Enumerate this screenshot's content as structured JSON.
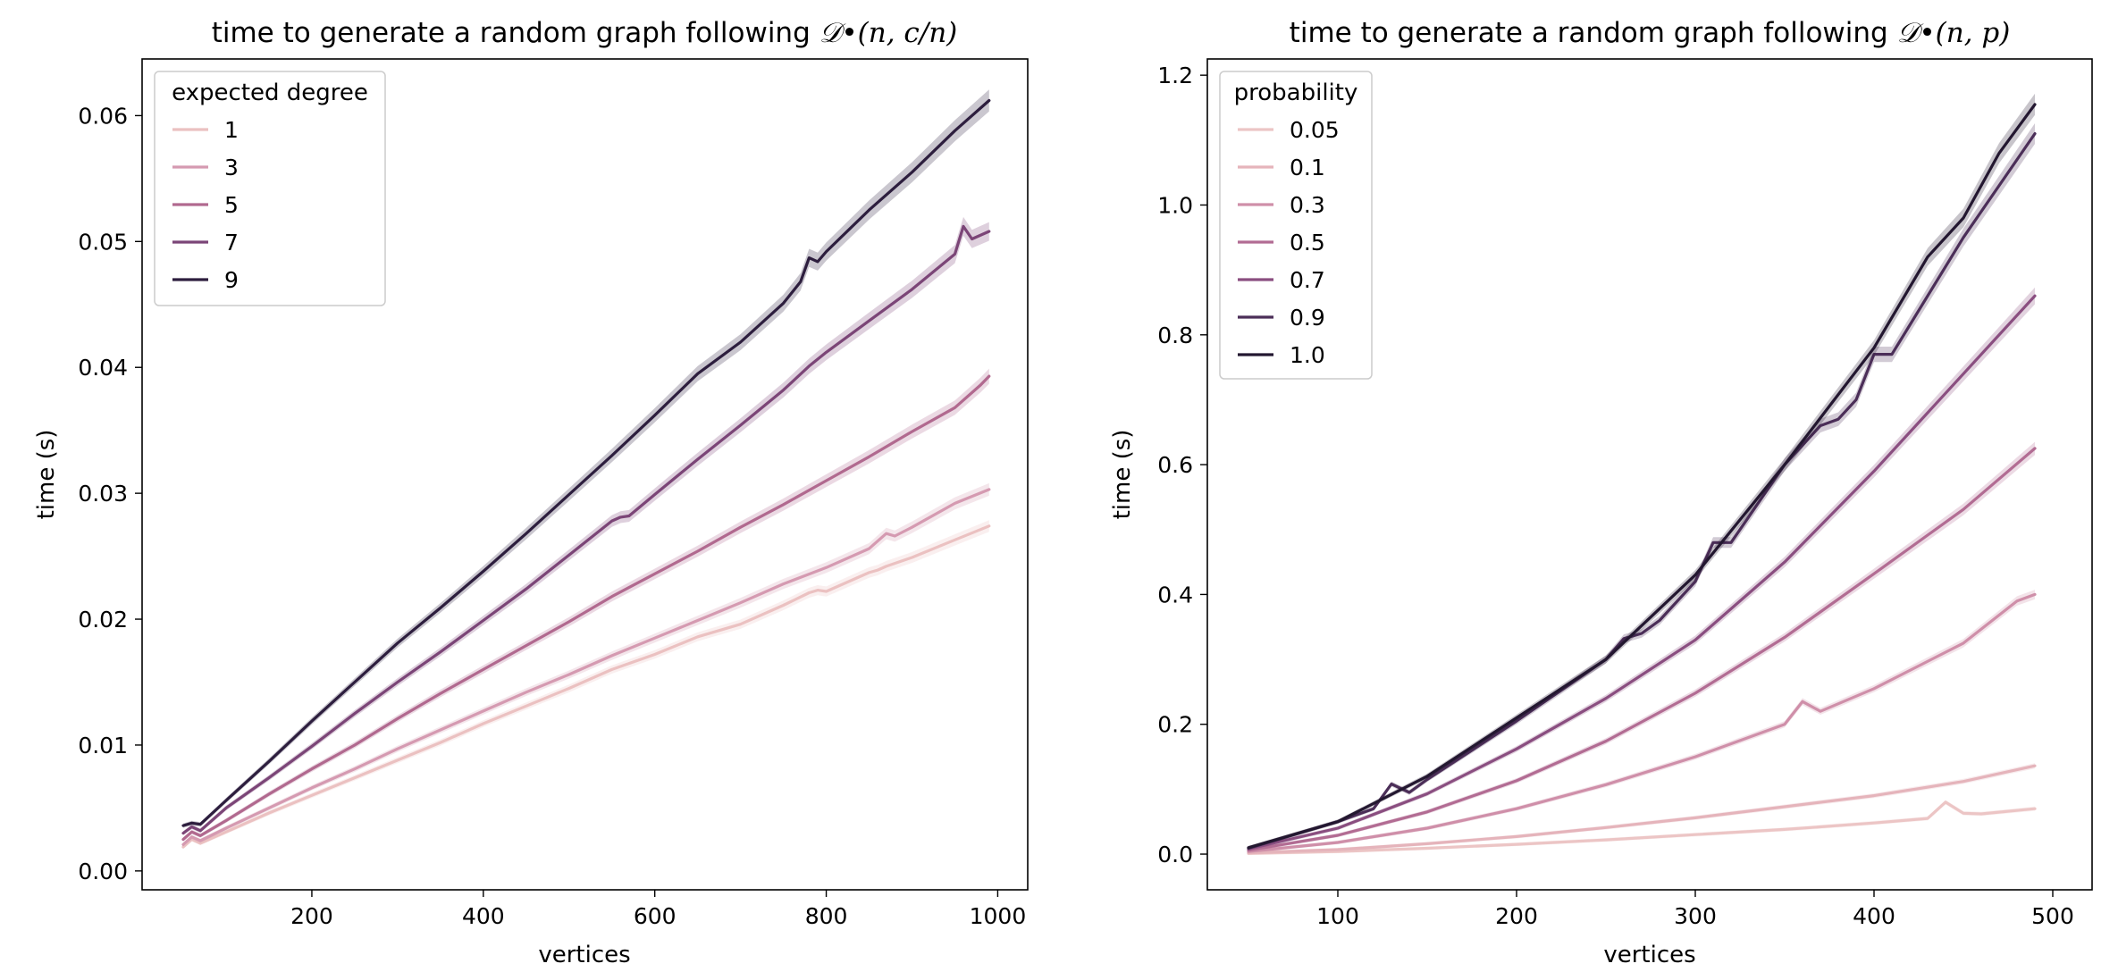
{
  "chart_data": [
    {
      "type": "line",
      "title_prefix": "time to generate a random graph following ",
      "title_math": "𝒟•(n, c/n)",
      "xlabel": "vertices",
      "ylabel": "time (s)",
      "xlim": [
        2,
        1035
      ],
      "ylim": [
        -0.0015,
        0.0645
      ],
      "xticks": [
        200,
        400,
        600,
        800,
        1000
      ],
      "xtick_labels": [
        "200",
        "400",
        "600",
        "800",
        "1000"
      ],
      "yticks": [
        0.0,
        0.01,
        0.02,
        0.03,
        0.04,
        0.05,
        0.06
      ],
      "ytick_labels": [
        "0.00",
        "0.01",
        "0.02",
        "0.03",
        "0.04",
        "0.05",
        "0.06"
      ],
      "grid": false,
      "legend_title": "expected degree",
      "legend_position": "top-left",
      "series": [
        {
          "name": "1",
          "color": "#ebc1c1",
          "x": [
            50,
            60,
            70,
            100,
            150,
            200,
            250,
            300,
            350,
            400,
            450,
            500,
            550,
            600,
            650,
            700,
            750,
            780,
            790,
            800,
            850,
            860,
            870,
            900,
            950,
            990
          ],
          "y": [
            0.0019,
            0.0025,
            0.0022,
            0.0031,
            0.0046,
            0.006,
            0.0074,
            0.0088,
            0.0102,
            0.0117,
            0.0131,
            0.0145,
            0.016,
            0.0172,
            0.0186,
            0.0196,
            0.0211,
            0.0221,
            0.0223,
            0.0222,
            0.0237,
            0.0239,
            0.0242,
            0.0249,
            0.0263,
            0.0274
          ]
        },
        {
          "name": "3",
          "color": "#d59ab1",
          "x": [
            50,
            60,
            70,
            100,
            150,
            200,
            250,
            300,
            350,
            400,
            450,
            500,
            550,
            600,
            650,
            700,
            750,
            800,
            850,
            870,
            880,
            900,
            950,
            990
          ],
          "y": [
            0.0021,
            0.0027,
            0.0024,
            0.0034,
            0.005,
            0.0066,
            0.0081,
            0.0097,
            0.0112,
            0.0127,
            0.0142,
            0.0156,
            0.0171,
            0.0185,
            0.0199,
            0.0213,
            0.0228,
            0.0241,
            0.0256,
            0.0268,
            0.0266,
            0.0273,
            0.0292,
            0.0303
          ]
        },
        {
          "name": "5",
          "color": "#b1698f",
          "x": [
            50,
            60,
            70,
            100,
            150,
            200,
            250,
            300,
            350,
            400,
            450,
            500,
            550,
            600,
            650,
            700,
            750,
            800,
            850,
            900,
            950,
            980,
            990
          ],
          "y": [
            0.0025,
            0.0031,
            0.0028,
            0.004,
            0.0061,
            0.0081,
            0.01,
            0.0121,
            0.0141,
            0.016,
            0.0179,
            0.0198,
            0.0218,
            0.0236,
            0.0254,
            0.0273,
            0.0291,
            0.031,
            0.0329,
            0.0349,
            0.0368,
            0.0386,
            0.0393
          ]
        },
        {
          "name": "7",
          "color": "#7b4577",
          "x": [
            50,
            60,
            70,
            100,
            150,
            200,
            250,
            300,
            350,
            400,
            450,
            500,
            550,
            560,
            570,
            600,
            650,
            700,
            750,
            780,
            800,
            850,
            900,
            950,
            960,
            970,
            990
          ],
          "y": [
            0.003,
            0.0035,
            0.0032,
            0.005,
            0.0074,
            0.0099,
            0.0125,
            0.015,
            0.0174,
            0.0199,
            0.0224,
            0.0251,
            0.0278,
            0.0281,
            0.0282,
            0.0299,
            0.0327,
            0.0354,
            0.0382,
            0.0401,
            0.0412,
            0.0437,
            0.0462,
            0.049,
            0.0512,
            0.0502,
            0.0508
          ]
        },
        {
          "name": "9",
          "color": "#2d1e3e",
          "x": [
            50,
            60,
            70,
            100,
            150,
            200,
            250,
            300,
            350,
            400,
            450,
            500,
            550,
            600,
            650,
            700,
            750,
            770,
            780,
            790,
            800,
            850,
            900,
            950,
            990
          ],
          "y": [
            0.0036,
            0.0038,
            0.0037,
            0.0056,
            0.0087,
            0.0119,
            0.015,
            0.0181,
            0.0209,
            0.0238,
            0.0268,
            0.0299,
            0.033,
            0.0362,
            0.0395,
            0.042,
            0.0451,
            0.0468,
            0.0487,
            0.0484,
            0.0492,
            0.0525,
            0.0555,
            0.0588,
            0.0612
          ]
        }
      ]
    },
    {
      "type": "line",
      "title_prefix": "time to generate a random graph following ",
      "title_math": "𝒟•(n, p)",
      "xlabel": "vertices",
      "ylabel": "time (s)",
      "xlim": [
        27,
        522
      ],
      "ylim": [
        -0.055,
        1.225
      ],
      "xticks": [
        100,
        200,
        300,
        400,
        500
      ],
      "xtick_labels": [
        "100",
        "200",
        "300",
        "400",
        "500"
      ],
      "yticks": [
        0.0,
        0.2,
        0.4,
        0.6,
        0.8,
        1.0,
        1.2
      ],
      "ytick_labels": [
        "0.0",
        "0.2",
        "0.4",
        "0.6",
        "0.8",
        "1.0",
        "1.2"
      ],
      "grid": false,
      "legend_title": "probability",
      "legend_position": "top-left",
      "series": [
        {
          "name": "0.05",
          "color": "#ecc5c5",
          "x": [
            50,
            100,
            150,
            200,
            250,
            300,
            350,
            400,
            430,
            440,
            450,
            460,
            490
          ],
          "y": [
            0.001,
            0.004,
            0.009,
            0.015,
            0.022,
            0.03,
            0.038,
            0.048,
            0.055,
            0.08,
            0.063,
            0.062,
            0.07
          ]
        },
        {
          "name": "0.1",
          "color": "#e5b4bb",
          "x": [
            50,
            100,
            150,
            200,
            250,
            300,
            350,
            400,
            450,
            490
          ],
          "y": [
            0.002,
            0.007,
            0.016,
            0.027,
            0.041,
            0.056,
            0.073,
            0.09,
            0.112,
            0.136
          ]
        },
        {
          "name": "0.3",
          "color": "#cf8fa9",
          "x": [
            50,
            100,
            150,
            200,
            250,
            300,
            350,
            360,
            370,
            400,
            450,
            480,
            490
          ],
          "y": [
            0.004,
            0.018,
            0.04,
            0.07,
            0.107,
            0.15,
            0.2,
            0.235,
            0.22,
            0.255,
            0.325,
            0.39,
            0.4
          ]
        },
        {
          "name": "0.5",
          "color": "#b26c93",
          "x": [
            50,
            100,
            150,
            200,
            250,
            300,
            350,
            400,
            450,
            490
          ],
          "y": [
            0.006,
            0.029,
            0.065,
            0.113,
            0.174,
            0.248,
            0.334,
            0.432,
            0.531,
            0.625
          ]
        },
        {
          "name": "0.7",
          "color": "#8a4e80",
          "x": [
            50,
            100,
            150,
            200,
            250,
            300,
            350,
            400,
            450,
            490
          ],
          "y": [
            0.008,
            0.04,
            0.093,
            0.162,
            0.24,
            0.33,
            0.45,
            0.59,
            0.74,
            0.86
          ]
        },
        {
          "name": "0.9",
          "color": "#4b2e58",
          "x": [
            50,
            100,
            120,
            130,
            140,
            150,
            200,
            250,
            260,
            270,
            280,
            300,
            310,
            320,
            350,
            370,
            380,
            390,
            400,
            410,
            450,
            490
          ],
          "y": [
            0.009,
            0.05,
            0.07,
            0.108,
            0.095,
            0.115,
            0.205,
            0.3,
            0.332,
            0.34,
            0.36,
            0.42,
            0.48,
            0.48,
            0.6,
            0.66,
            0.67,
            0.7,
            0.77,
            0.77,
            0.95,
            1.11
          ]
        },
        {
          "name": "1.0",
          "color": "#231730",
          "x": [
            50,
            100,
            150,
            200,
            250,
            300,
            350,
            400,
            430,
            450,
            470,
            490
          ],
          "y": [
            0.01,
            0.05,
            0.12,
            0.21,
            0.3,
            0.43,
            0.6,
            0.78,
            0.92,
            0.98,
            1.08,
            1.155
          ]
        }
      ]
    }
  ]
}
